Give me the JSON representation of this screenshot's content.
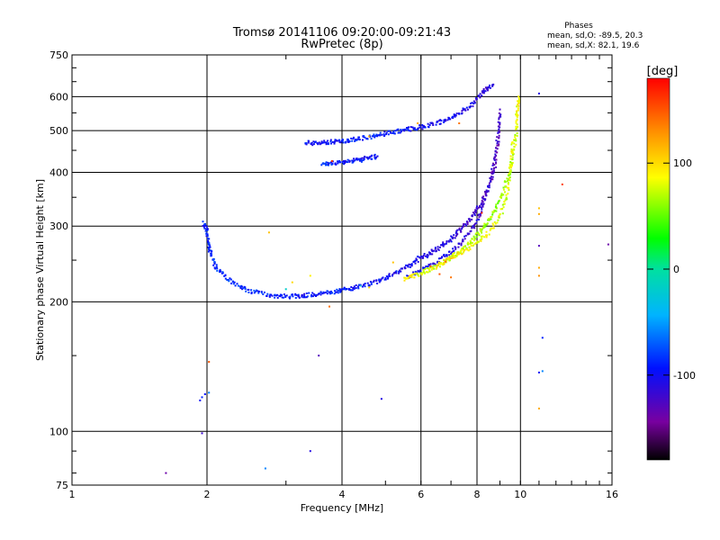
{
  "chart_data": {
    "type": "scatter",
    "title": "Tromsø 20141106 09:20:00-09:21:43",
    "subtitle": "RwPretec (8p)",
    "xlabel": "Frequency [MHz]",
    "ylabel": "Stationary phase Virtual Height [km]",
    "x_scale": "log",
    "y_scale": "log",
    "xlim": [
      1,
      16
    ],
    "ylim": [
      75,
      750
    ],
    "x_ticks": [
      1,
      2,
      4,
      6,
      8,
      10,
      16
    ],
    "y_ticks": [
      75,
      100,
      200,
      300,
      400,
      500,
      600,
      750
    ],
    "grid": true,
    "phase_stats": {
      "heading": "Phases",
      "o_line": "mean, sd,O: -89.5, 20.3",
      "x_line": "mean, sd,X:  82.1, 19.6"
    },
    "colorbar": {
      "label": "[deg]",
      "min": -180,
      "max": 180,
      "ticks": [
        100,
        0,
        -100
      ]
    },
    "series": [
      {
        "mode": "O",
        "traces": [
          {
            "freq": [
              1.97,
              2.0,
              2.02,
              2.05,
              2.1,
              2.2,
              2.35,
              2.5,
              2.7,
              2.9,
              3.1,
              3.3,
              3.5,
              3.7,
              3.9,
              4.1,
              4.3,
              4.6,
              4.9,
              5.2,
              5.5,
              5.8,
              6.1,
              6.4,
              6.7,
              7.0,
              7.3,
              7.6,
              7.9,
              8.2,
              8.5,
              8.75,
              8.9,
              9.0
            ],
            "height": [
              305,
              290,
              270,
              255,
              240,
              228,
              218,
              212,
              208,
              206,
              206,
              207,
              208,
              210,
              212,
              214,
              216,
              220,
              225,
              232,
              240,
              247,
              255,
              262,
              270,
              280,
              292,
              305,
              320,
              340,
              370,
              410,
              470,
              560
            ],
            "phase": [
              -95,
              -92,
              -90,
              -88,
              -88,
              -85,
              -85,
              -87,
              -90,
              -92,
              -95,
              -98,
              -96,
              -94,
              -92,
              -94,
              -96,
              -98,
              -100,
              -102,
              -104,
              -106,
              -108,
              -110,
              -112,
              -115,
              -118,
              -120,
              -122,
              -124,
              -126,
              -128,
              -126,
              -124
            ]
          },
          {
            "freq": [
              5.6,
              6.0,
              6.4,
              6.8,
              7.2,
              7.6,
              8.0,
              8.3,
              8.6,
              8.85,
              9.0
            ],
            "height": [
              228,
              236,
              245,
              255,
              268,
              285,
              308,
              340,
              385,
              450,
              540
            ],
            "phase": [
              -100,
              -103,
              -106,
              -109,
              -112,
              -115,
              -118,
              -121,
              -124,
              -126,
              -124
            ]
          },
          {
            "freq": [
              3.3,
              3.5,
              3.7,
              3.9,
              4.1,
              4.3,
              4.6,
              4.9,
              5.2,
              5.5,
              5.8,
              6.1,
              6.5,
              6.9,
              7.3,
              7.7,
              8.1,
              8.4,
              8.7
            ],
            "height": [
              468,
              468,
              470,
              472,
              474,
              478,
              484,
              490,
              496,
              502,
              506,
              512,
              520,
              532,
              548,
              570,
              600,
              625,
              640
            ],
            "phase": [
              -95,
              -97,
              -99,
              -97,
              -95,
              -92,
              -90,
              -93,
              -95,
              -97,
              -99,
              -100,
              -102,
              -104,
              -106,
              -108,
              -110,
              -112,
              -115
            ]
          },
          {
            "freq": [
              3.6,
              3.8,
              4.0,
              4.2,
              4.4,
              4.6,
              4.8
            ],
            "height": [
              418,
              420,
              422,
              425,
              428,
              432,
              436
            ],
            "phase": [
              -90,
              -92,
              -94,
              -96,
              -98,
              -100,
              -102
            ]
          }
        ]
      },
      {
        "mode": "X",
        "traces": [
          {
            "freq": [
              5.5,
              5.8,
              6.1,
              6.4,
              6.7,
              7.0,
              7.3,
              7.6,
              7.9,
              8.2,
              8.5,
              8.8,
              9.1,
              9.35,
              9.55,
              9.7,
              9.8,
              9.85,
              9.9
            ],
            "height": [
              226,
              230,
              235,
              240,
              246,
              253,
              261,
              270,
              281,
              294,
              310,
              330,
              355,
              385,
              420,
              460,
              510,
              560,
              600
            ],
            "phase": [
              85,
              82,
              80,
              78,
              75,
              72,
              70,
              68,
              66,
              64,
              62,
              60,
              62,
              65,
              70,
              75,
              80,
              85,
              90
            ]
          },
          {
            "freq": [
              6.5,
              7.0,
              7.5,
              8.0,
              8.5,
              9.0,
              9.3,
              9.5,
              9.6
            ],
            "height": [
              244,
              252,
              262,
              274,
              290,
              315,
              350,
              400,
              470
            ],
            "phase": [
              100,
              95,
              90,
              85,
              80,
              75,
              78,
              82,
              86
            ]
          }
        ]
      },
      {
        "mode": "scatter",
        "points": [
          {
            "f": 1.98,
            "h": 122,
            "p": -95
          },
          {
            "f": 1.95,
            "h": 120,
            "p": -90
          },
          {
            "f": 1.93,
            "h": 118,
            "p": -100
          },
          {
            "f": 2.02,
            "h": 123,
            "p": -60
          },
          {
            "f": 2.02,
            "h": 145,
            "p": 150
          },
          {
            "f": 1.95,
            "h": 99,
            "p": -120
          },
          {
            "f": 1.62,
            "h": 80,
            "p": -140
          },
          {
            "f": 2.7,
            "h": 82,
            "p": -60
          },
          {
            "f": 3.4,
            "h": 90,
            "p": -110
          },
          {
            "f": 3.55,
            "h": 150,
            "p": -130
          },
          {
            "f": 3.75,
            "h": 195,
            "p": 140
          },
          {
            "f": 4.9,
            "h": 119,
            "p": -110
          },
          {
            "f": 2.75,
            "h": 290,
            "p": 110
          },
          {
            "f": 11.0,
            "h": 610,
            "p": -110
          },
          {
            "f": 11.0,
            "h": 330,
            "p": 110
          },
          {
            "f": 11.0,
            "h": 320,
            "p": 120
          },
          {
            "f": 11.0,
            "h": 270,
            "p": -130
          },
          {
            "f": 11.0,
            "h": 240,
            "p": 120
          },
          {
            "f": 11.0,
            "h": 230,
            "p": 130
          },
          {
            "f": 11.2,
            "h": 165,
            "p": -90
          },
          {
            "f": 11.0,
            "h": 137,
            "p": -100
          },
          {
            "f": 11.2,
            "h": 138,
            "p": -60
          },
          {
            "f": 11.0,
            "h": 113,
            "p": 120
          },
          {
            "f": 12.4,
            "h": 375,
            "p": 160
          },
          {
            "f": 15.7,
            "h": 272,
            "p": -140
          },
          {
            "f": 3.8,
            "h": 425,
            "p": 160
          },
          {
            "f": 4.6,
            "h": 485,
            "p": 120
          },
          {
            "f": 5.9,
            "h": 520,
            "p": 120
          },
          {
            "f": 7.3,
            "h": 520,
            "p": 140
          },
          {
            "f": 8.2,
            "h": 322,
            "p": 170
          },
          {
            "f": 7.0,
            "h": 228,
            "p": 140
          },
          {
            "f": 6.6,
            "h": 232,
            "p": 150
          },
          {
            "f": 4.6,
            "h": 216,
            "p": 100
          },
          {
            "f": 3.1,
            "h": 222,
            "p": 100
          },
          {
            "f": 3.4,
            "h": 230,
            "p": 90
          },
          {
            "f": 5.2,
            "h": 247,
            "p": 110
          },
          {
            "f": 5.9,
            "h": 255,
            "p": -85
          },
          {
            "f": 3.0,
            "h": 214,
            "p": -20
          },
          {
            "f": 4.4,
            "h": 218,
            "p": -30
          },
          {
            "f": 6.3,
            "h": 242,
            "p": 155
          },
          {
            "f": 6.8,
            "h": 248,
            "p": 145
          }
        ]
      }
    ]
  }
}
